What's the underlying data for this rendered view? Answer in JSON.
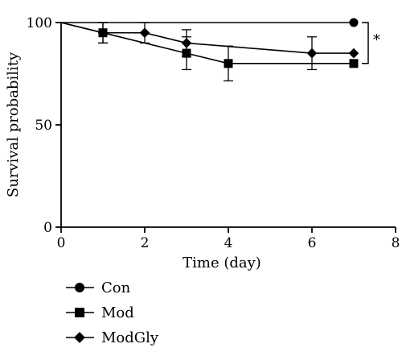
{
  "chart_data": {
    "type": "line",
    "title": "",
    "xlabel": "Time (day)",
    "ylabel": "Survival probability",
    "xlim": [
      0,
      8
    ],
    "ylim": [
      0,
      100
    ],
    "xticks": [
      0,
      2,
      4,
      6,
      8
    ],
    "yticks": [
      0,
      50,
      100
    ],
    "grid": false,
    "legend_position": "bottom-left",
    "significance_label": "*",
    "series": [
      {
        "name": "Con",
        "marker": "circle",
        "x": [
          0,
          7
        ],
        "y": [
          100,
          100
        ],
        "err": [
          0,
          0
        ]
      },
      {
        "name": "Mod",
        "marker": "square",
        "x": [
          0,
          1,
          3,
          4,
          7
        ],
        "y": [
          100,
          95,
          85,
          80,
          80
        ],
        "err": [
          0,
          5,
          8,
          8.5,
          0
        ]
      },
      {
        "name": "ModGly",
        "marker": "diamond",
        "x": [
          0,
          1,
          2,
          3,
          6,
          7
        ],
        "y": [
          100,
          95,
          95,
          90,
          85,
          85
        ],
        "err": [
          0,
          5,
          5,
          6.5,
          8,
          0
        ]
      }
    ]
  }
}
